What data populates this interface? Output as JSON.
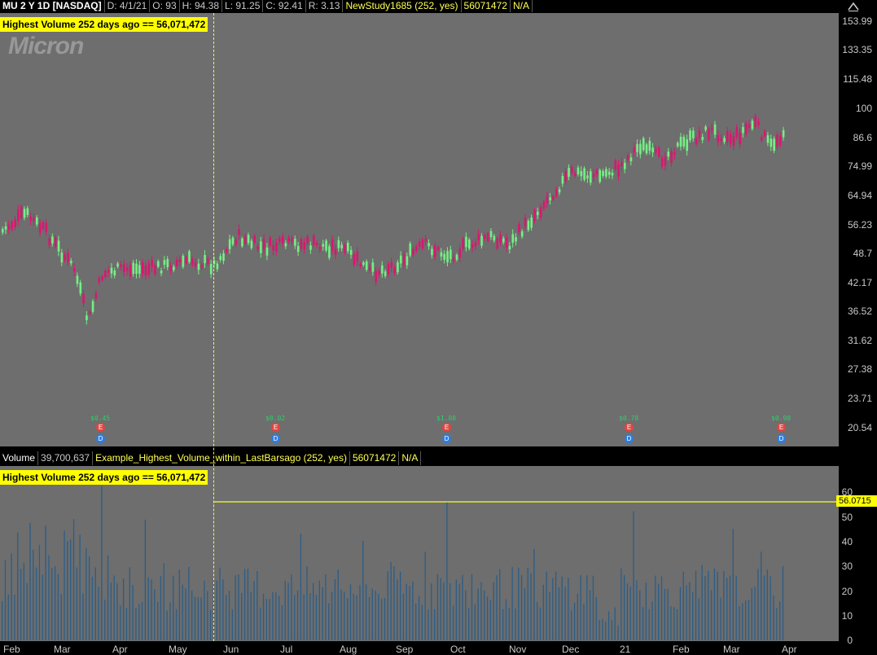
{
  "price_header": {
    "symbol": "MU 2 Y 1D [NASDAQ]",
    "date": "D: 4/1/21",
    "open": "O: 93",
    "high": "H: 94.38",
    "low": "L: 91.25",
    "close": "C: 92.41",
    "range": "R: 3.13",
    "study": "NewStudy1685 (252, yes)",
    "study_value": "56071472",
    "study_na": "N/A"
  },
  "volume_header": {
    "label": "Volume",
    "value": "39,700,637",
    "study": "Example_Highest_Volume_within_LastBarsago (252, yes)",
    "study_value": "56071472",
    "study_na": "N/A"
  },
  "bubble_text": "Highest Volume  252 days ago == 56,071,472",
  "logo_text": "Micron",
  "volume_line_label": "56.0715",
  "price_axis": [
    "153.99",
    "133.35",
    "115.48",
    "100",
    "86.6",
    "74.99",
    "64.94",
    "56.23",
    "48.7",
    "42.17",
    "36.52",
    "31.62",
    "27.38",
    "23.71",
    "20.54"
  ],
  "volume_axis": [
    "60",
    "50",
    "40",
    "30",
    "20",
    "10",
    "0"
  ],
  "time_axis": [
    "Feb",
    "Mar",
    "Apr",
    "May",
    "Jun",
    "Jul",
    "Aug",
    "Sep",
    "Oct",
    "Nov",
    "Dec",
    "21",
    "Feb",
    "Mar",
    "Apr"
  ],
  "earnings": [
    {
      "amount": "$0.45",
      "e": "E",
      "d": "D"
    },
    {
      "amount": "$0.02",
      "e": "E",
      "d": "D"
    },
    {
      "amount": "$1.08",
      "e": "E",
      "d": "D"
    },
    {
      "amount": "$0.78",
      "e": "E",
      "d": "D"
    },
    {
      "amount": "$0.98",
      "e": "E",
      "d": "D"
    }
  ],
  "colors": {
    "up": "#74f084",
    "down": "#d9176f",
    "volume_bar": "#2c5d86",
    "study_line": "#ffff33",
    "bubble": "#ffff00"
  },
  "icons": {
    "collapse": "chevron-up-icon"
  }
}
